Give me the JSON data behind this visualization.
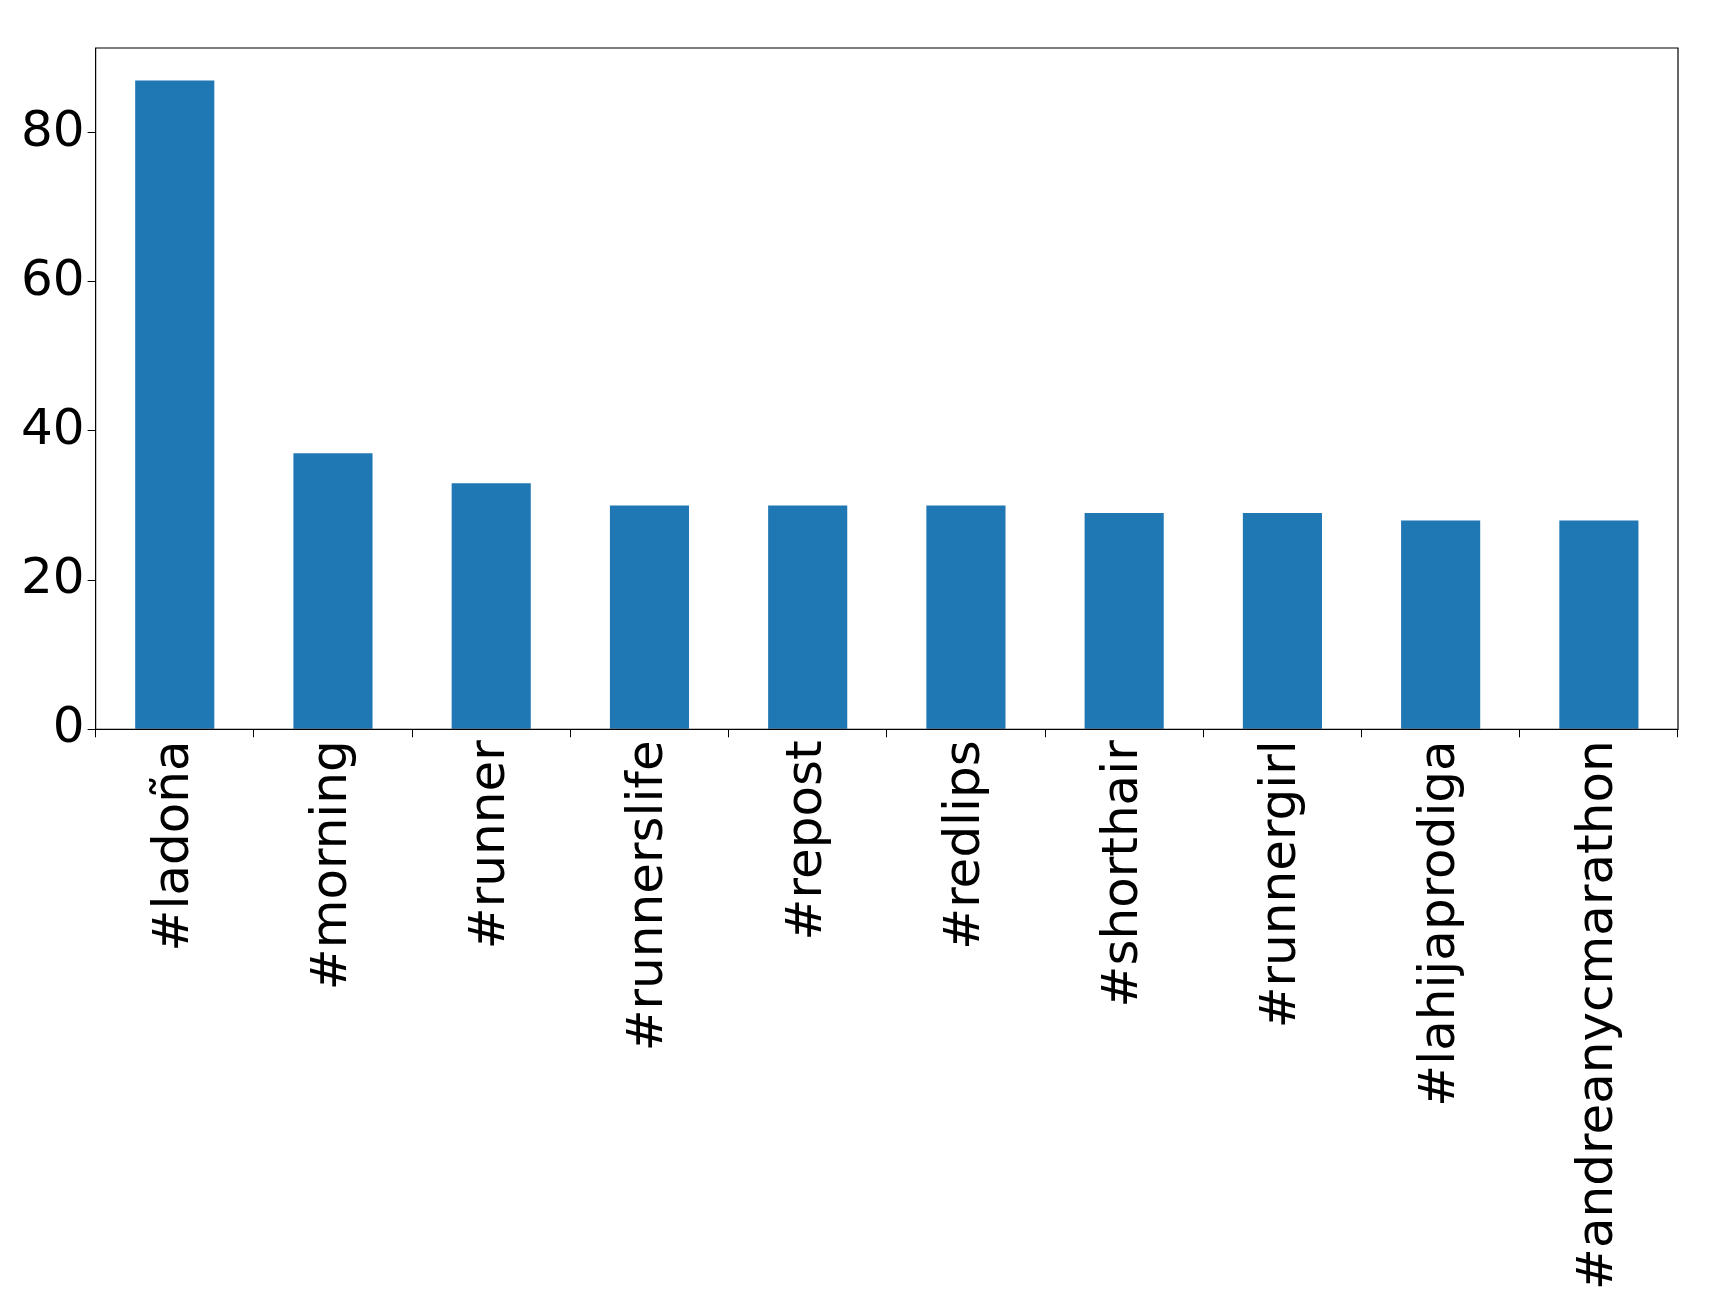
{
  "chart_data": {
    "type": "bar",
    "categories": [
      "#ladoña",
      "#morning",
      "#runner",
      "#runnerslife",
      "#repost",
      "#redlips",
      "#shorthair",
      "#runnergirl",
      "#lahijaprodiga",
      "#andreanycmarathon"
    ],
    "values": [
      87,
      37,
      33,
      30,
      30,
      30,
      29,
      29,
      28,
      28
    ],
    "color": "#1f77b4",
    "ylim": [
      0,
      91.35
    ],
    "yticks": [
      0,
      20,
      40,
      60,
      80
    ],
    "grid": false,
    "legend": false
  }
}
